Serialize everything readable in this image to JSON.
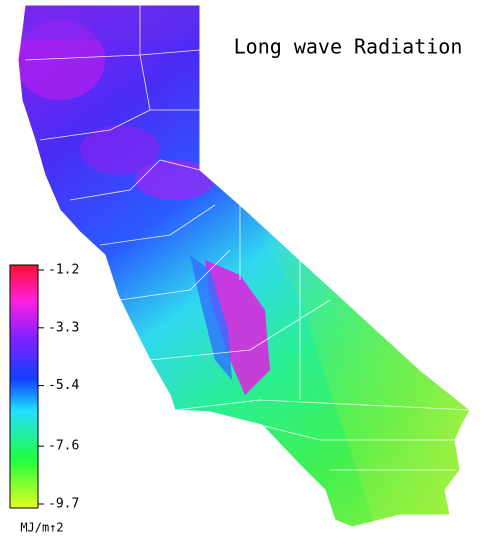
{
  "title": "Long wave Radiation",
  "colorbar": {
    "ticks": [
      -1.2,
      -3.3,
      -5.4,
      -7.6,
      -9.7
    ],
    "label": "MJ/m↑2"
  }
}
